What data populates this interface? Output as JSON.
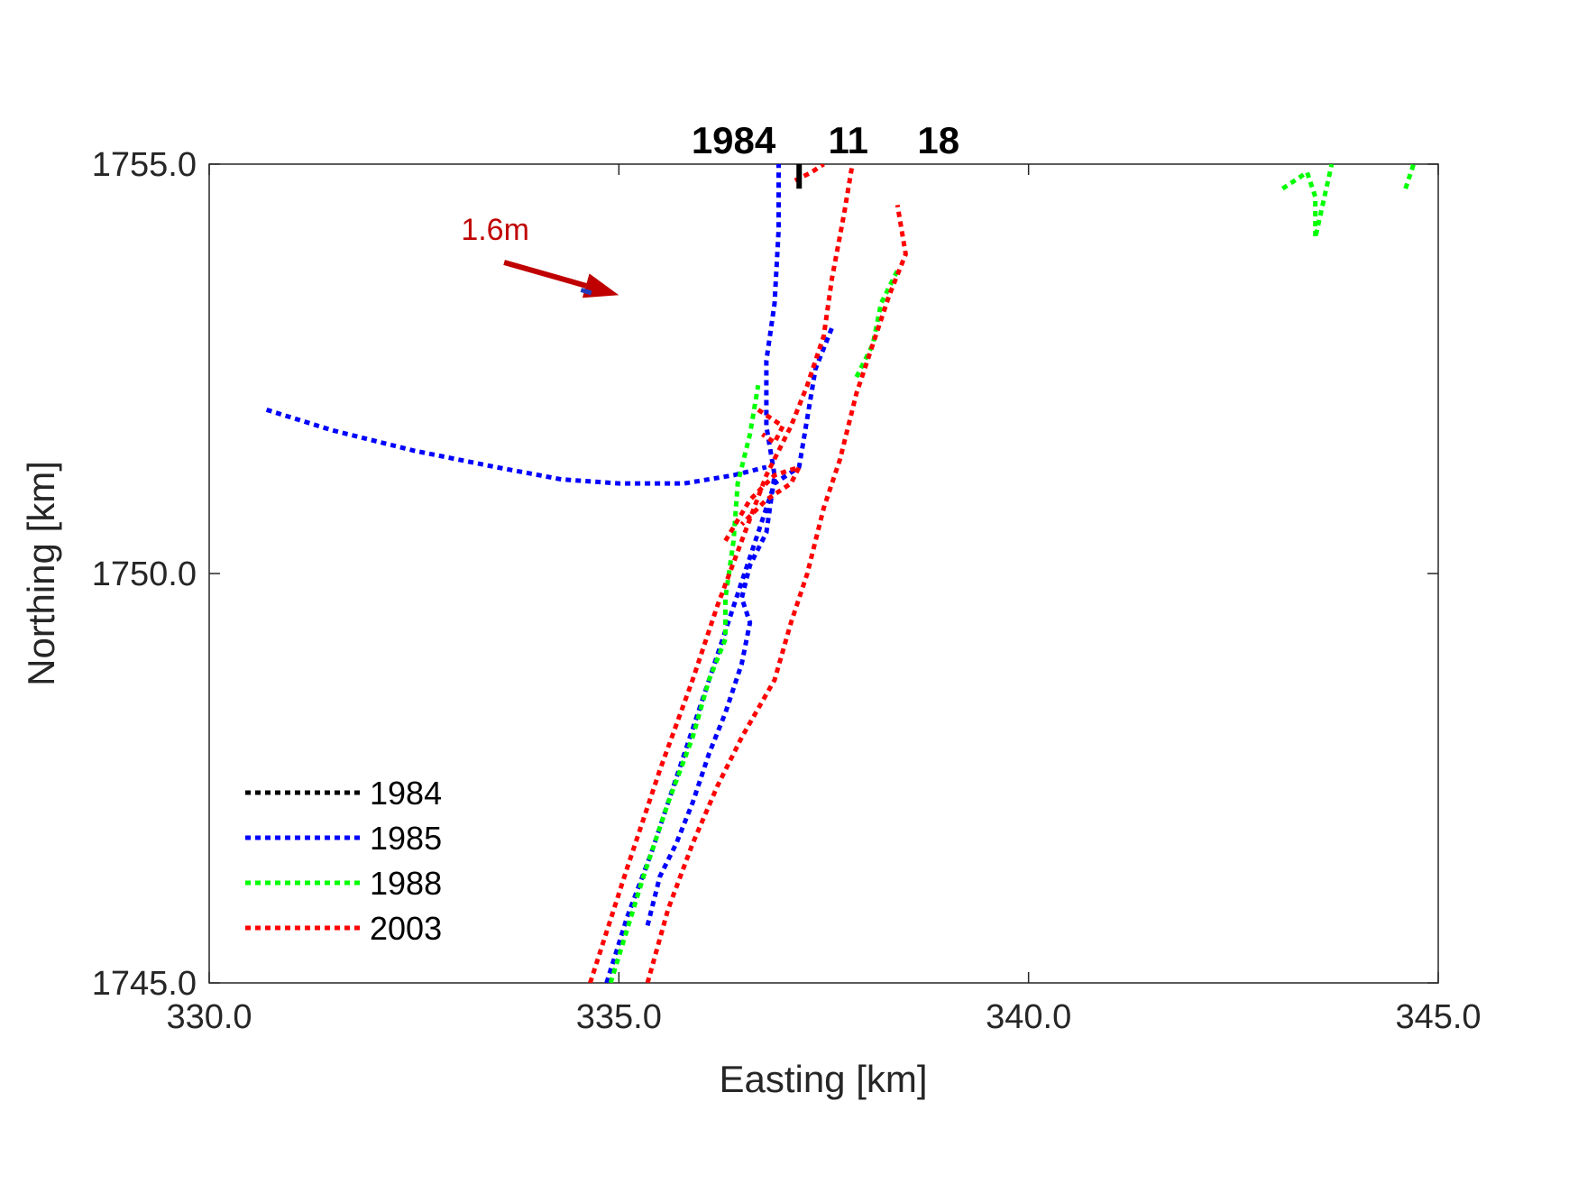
{
  "chart_data": {
    "type": "line",
    "xlabel": "Easting [km]",
    "ylabel": "Northing [km]",
    "xlim": [
      330.0,
      345.0
    ],
    "ylim": [
      1745.0,
      1755.0
    ],
    "xticks": [
      "330.0",
      "335.0",
      "340.0",
      "345.0"
    ],
    "yticks": [
      "1745.0",
      "1750.0",
      "1755.0"
    ],
    "xtick_values": [
      330,
      335,
      340,
      345
    ],
    "ytick_values": [
      1745,
      1750,
      1755
    ],
    "grid": false,
    "legend_position": "bottom-left",
    "top_labels": [
      {
        "text": "1984",
        "x": 336.4
      },
      {
        "text": "11",
        "x": 337.8
      },
      {
        "text": "18",
        "x": 338.9
      }
    ],
    "top_marker": {
      "x": 337.2,
      "y": [
        1754.7,
        1755.0
      ],
      "color": "#000000"
    },
    "arrow": {
      "label": "1.6m",
      "x0": 333.6,
      "y0": 1753.8,
      "x1": 335.0,
      "y1": 1753.4,
      "color": "#c00000"
    },
    "series": [
      {
        "name": "1984",
        "color": "#000000",
        "lines": []
      },
      {
        "name": "1985",
        "color": "#0000ff",
        "lines": [
          [
            [
              334.85,
              1745.0
            ],
            [
              335.1,
              1745.8
            ],
            [
              335.4,
              1746.6
            ],
            [
              335.7,
              1747.5
            ],
            [
              336.0,
              1748.4
            ],
            [
              336.3,
              1749.3
            ],
            [
              336.5,
              1749.9
            ],
            [
              336.7,
              1750.5
            ],
            [
              336.9,
              1751.1
            ],
            [
              337.2,
              1751.3
            ],
            [
              337.3,
              1751.9
            ],
            [
              337.4,
              1752.5
            ],
            [
              337.6,
              1753.0
            ]
          ],
          [
            [
              335.35,
              1745.7
            ],
            [
              335.5,
              1746.3
            ],
            [
              335.7,
              1746.7
            ],
            [
              335.9,
              1747.2
            ],
            [
              336.1,
              1747.8
            ],
            [
              336.3,
              1748.3
            ],
            [
              336.5,
              1748.9
            ],
            [
              336.6,
              1749.4
            ],
            [
              336.5,
              1749.7
            ],
            [
              336.6,
              1750.1
            ],
            [
              336.8,
              1750.5
            ],
            [
              336.9,
              1751.2
            ],
            [
              336.8,
              1751.8
            ],
            [
              336.8,
              1752.6
            ],
            [
              336.9,
              1753.3
            ],
            [
              336.95,
              1754.2
            ],
            [
              336.95,
              1755.0
            ]
          ],
          [
            [
              330.7,
              1752.0
            ],
            [
              331.5,
              1751.75
            ],
            [
              332.5,
              1751.5
            ],
            [
              333.5,
              1751.3
            ],
            [
              334.3,
              1751.15
            ],
            [
              335.0,
              1751.1
            ],
            [
              335.8,
              1751.1
            ],
            [
              336.4,
              1751.2
            ],
            [
              336.8,
              1751.3
            ]
          ]
        ]
      },
      {
        "name": "1988",
        "color": "#00ff00",
        "lines": [
          [
            [
              334.9,
              1745.0
            ],
            [
              335.3,
              1746.3
            ],
            [
              335.6,
              1747.2
            ],
            [
              335.9,
              1748.0
            ],
            [
              336.1,
              1748.7
            ],
            [
              336.3,
              1749.2
            ],
            [
              336.3,
              1749.7
            ],
            [
              336.4,
              1750.4
            ],
            [
              336.45,
              1751.1
            ],
            [
              336.6,
              1751.7
            ],
            [
              336.7,
              1752.3
            ]
          ],
          [
            [
              337.9,
              1752.4
            ],
            [
              338.1,
              1752.8
            ],
            [
              338.2,
              1753.3
            ],
            [
              338.4,
              1753.7
            ]
          ],
          [
            [
              343.1,
              1754.7
            ],
            [
              343.4,
              1754.9
            ],
            [
              343.5,
              1754.6
            ],
            [
              343.5,
              1754.1
            ],
            [
              343.7,
              1755.0
            ]
          ],
          [
            [
              344.6,
              1754.7
            ],
            [
              344.7,
              1755.0
            ]
          ]
        ]
      },
      {
        "name": "2003",
        "color": "#ff0000",
        "lines": [
          [
            [
              334.65,
              1745.0
            ],
            [
              335.1,
              1746.4
            ],
            [
              335.5,
              1747.6
            ],
            [
              335.9,
              1748.7
            ],
            [
              336.2,
              1749.6
            ],
            [
              336.5,
              1750.4
            ],
            [
              336.8,
              1751.2
            ],
            [
              337.1,
              1751.8
            ],
            [
              337.3,
              1752.3
            ],
            [
              337.5,
              1752.9
            ],
            [
              337.6,
              1753.6
            ],
            [
              337.75,
              1754.4
            ],
            [
              337.85,
              1755.0
            ]
          ],
          [
            [
              335.35,
              1745.0
            ],
            [
              335.6,
              1745.9
            ],
            [
              335.9,
              1746.7
            ],
            [
              336.2,
              1747.4
            ],
            [
              336.5,
              1748.0
            ],
            [
              336.9,
              1748.7
            ],
            [
              337.1,
              1749.4
            ],
            [
              337.3,
              1750.0
            ],
            [
              337.5,
              1750.8
            ],
            [
              337.7,
              1751.4
            ],
            [
              337.9,
              1752.2
            ],
            [
              338.1,
              1752.8
            ],
            [
              338.3,
              1753.4
            ],
            [
              338.5,
              1753.9
            ],
            [
              338.4,
              1754.5
            ]
          ],
          [
            [
              336.3,
              1750.4
            ],
            [
              336.6,
              1750.9
            ],
            [
              336.9,
              1751.2
            ],
            [
              337.2,
              1751.3
            ],
            [
              337.1,
              1751.1
            ],
            [
              336.8,
              1750.9
            ],
            [
              336.5,
              1750.6
            ]
          ],
          [
            [
              336.7,
              1752.0
            ],
            [
              337.0,
              1751.8
            ],
            [
              336.9,
              1751.6
            ],
            [
              336.75,
              1751.7
            ]
          ],
          [
            [
              337.15,
              1754.8
            ],
            [
              337.35,
              1754.9
            ],
            [
              337.5,
              1755.0
            ]
          ]
        ]
      }
    ]
  },
  "colors": {
    "axis": "#262626",
    "arrow": "#c00000",
    "arrow_head_accent": "#1f3fbf"
  }
}
